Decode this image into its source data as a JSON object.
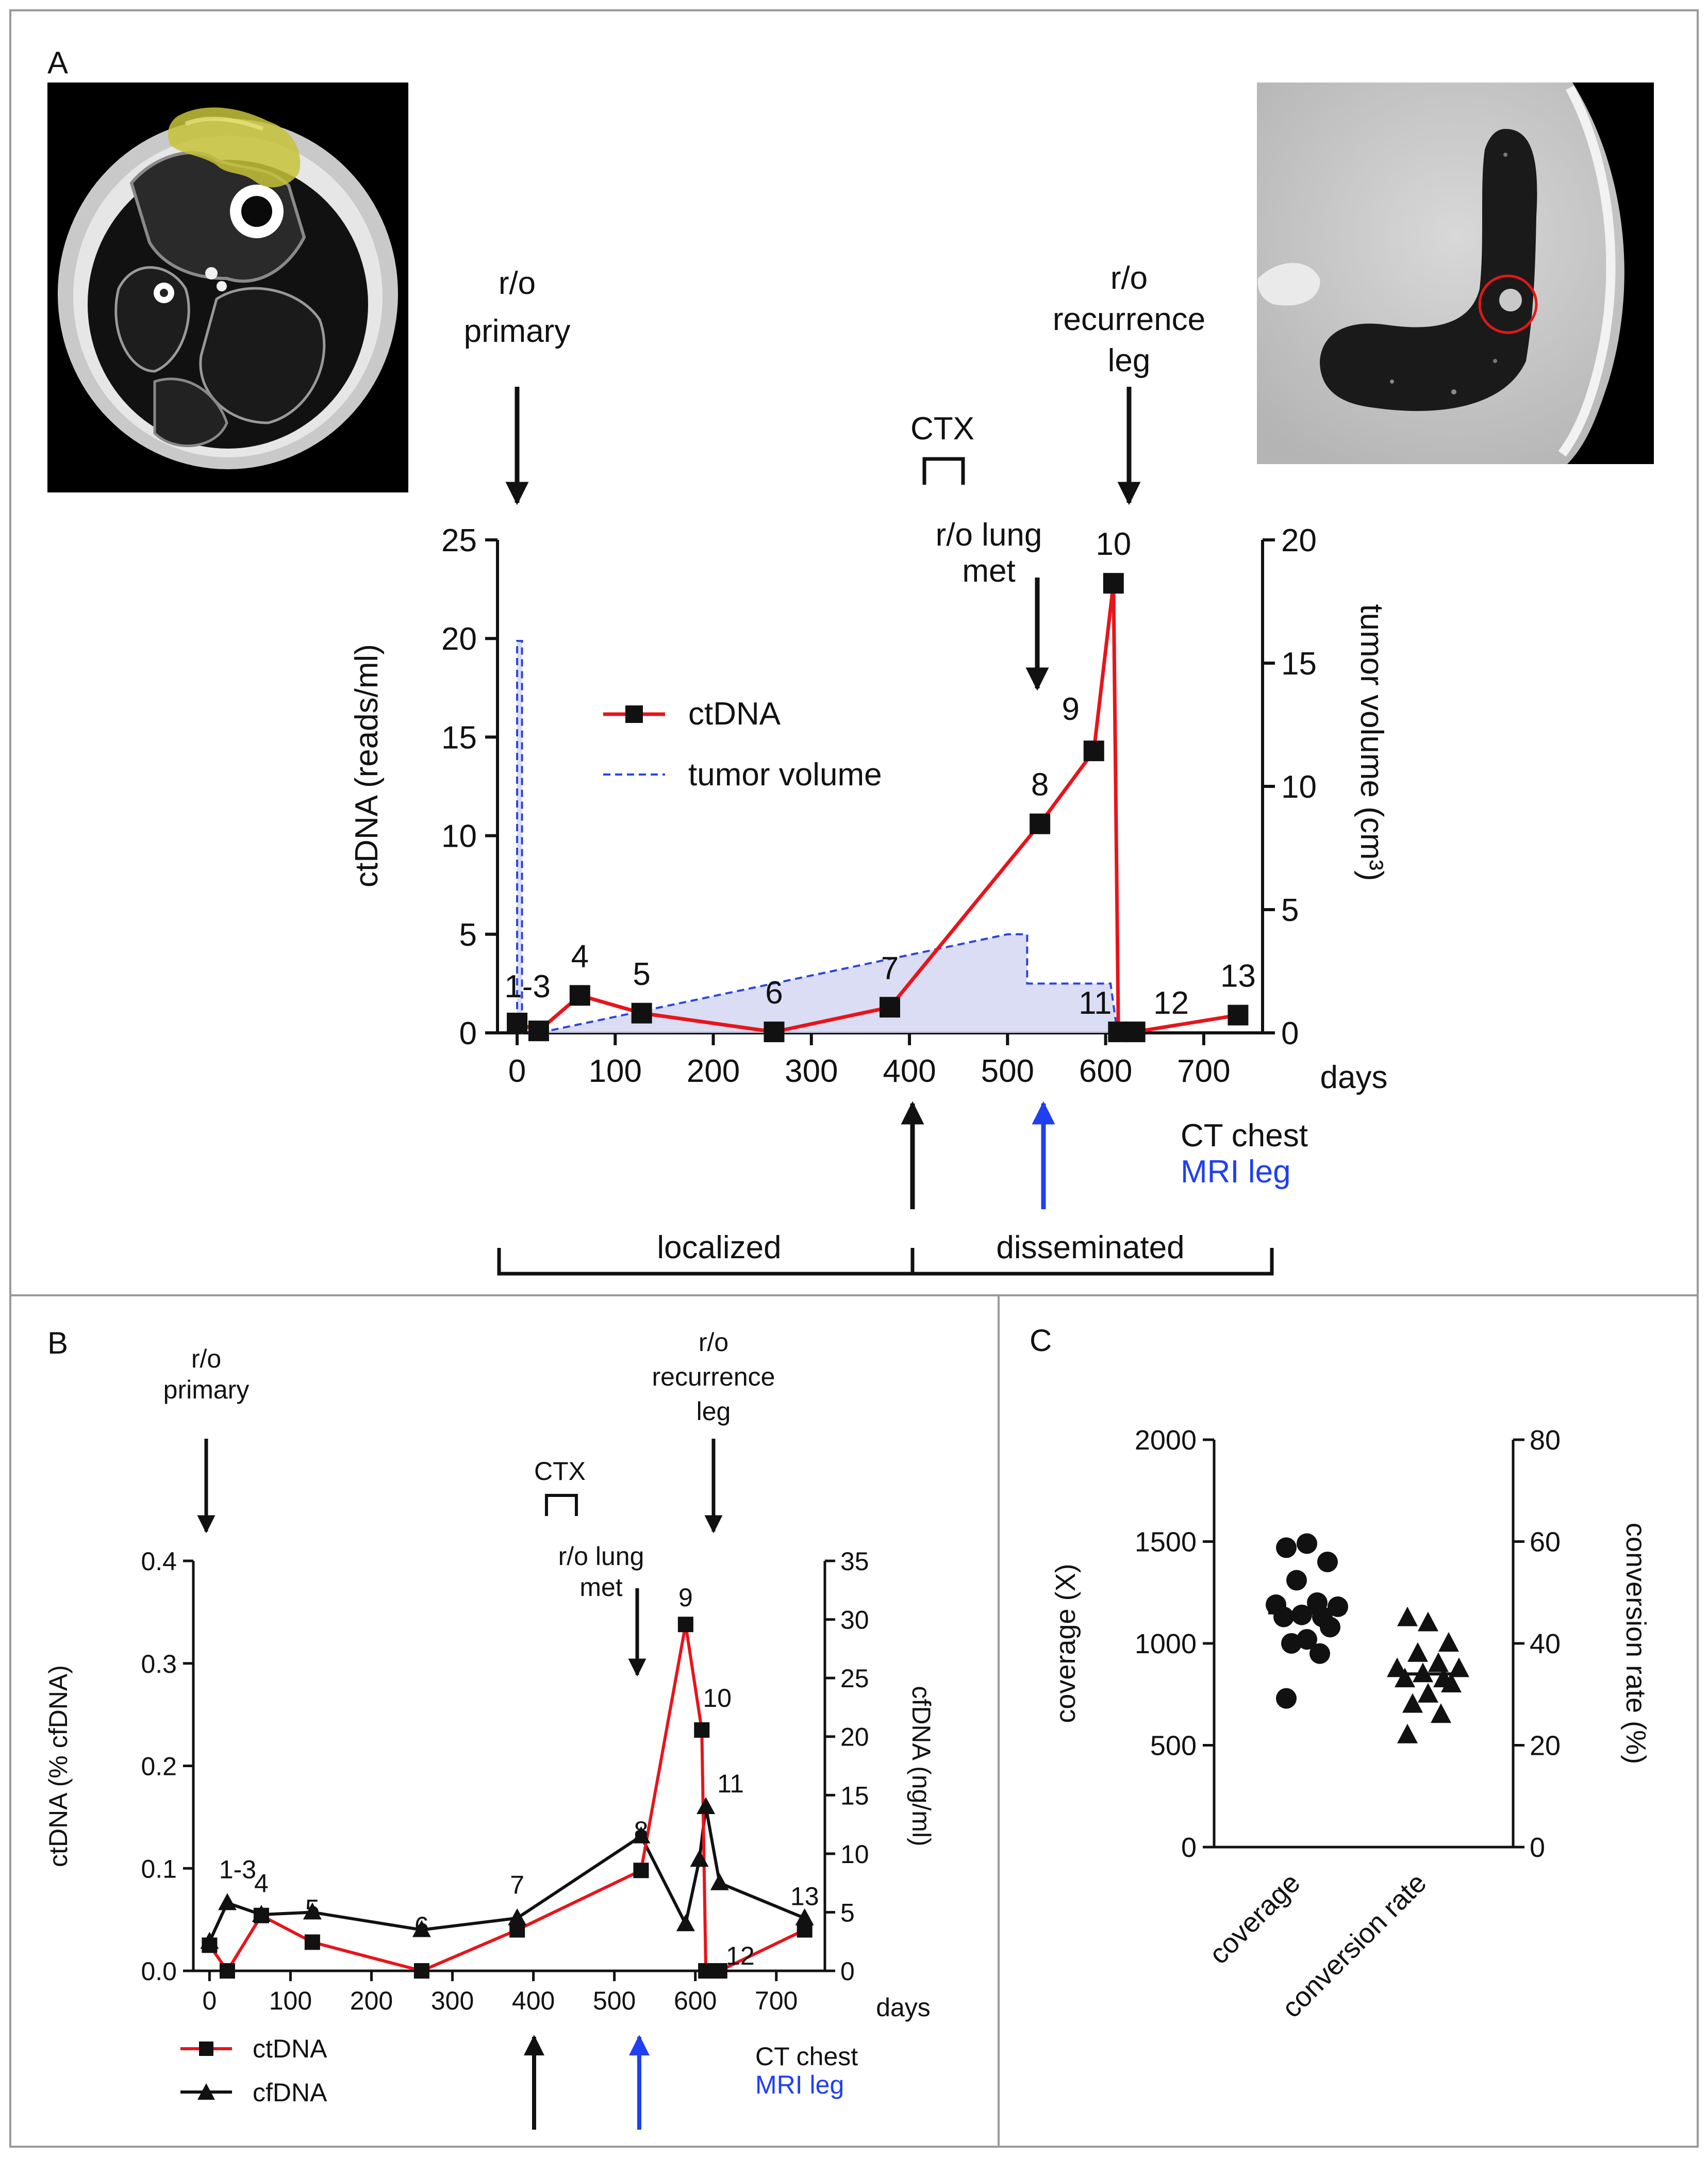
{
  "panel_labels": {
    "a": "A",
    "b": "B",
    "c": "C"
  },
  "colors": {
    "ctdna": "#e8141b",
    "black": "#111111",
    "tumor_line": "#2b45d9",
    "tumor_fill": "#d6d9f3",
    "blue_arrow": "#1f3ff2",
    "frame": "#9a9a9a"
  },
  "images": {
    "mri_caption": "MRI leg axial with highlighted tumor",
    "ct_caption": "CT chest with lung metastasis circled"
  },
  "panel_a": {
    "events": {
      "primary_1": "r/o",
      "primary_2": "primary",
      "ctx": "CTX",
      "lungmet_1": "r/o lung",
      "lungmet_2": "met",
      "recur_1": "r/o",
      "recur_2": "recurrence",
      "recur_3": "leg"
    },
    "bottom": {
      "ct_chest": "CT chest",
      "mri_leg": "MRI leg",
      "localized": "localized",
      "disseminated": "disseminated"
    }
  },
  "panel_b": {
    "events": {
      "primary_1": "r/o",
      "primary_2": "primary",
      "ctx": "CTX",
      "lungmet_1": "r/o lung",
      "lungmet_2": "met",
      "recur_1": "r/o",
      "recur_2": "recurrence",
      "recur_3": "leg"
    },
    "bottom": {
      "ct_chest": "CT chest",
      "mri_leg": "MRI leg"
    }
  },
  "chart_data": [
    {
      "panel": "A",
      "type": "line",
      "xlabel": "days",
      "ylabel": "ctDNA (reads/ml)",
      "y2label": "tumor volume (cm³)",
      "xlim": [
        -20,
        760
      ],
      "xticks": [
        0,
        100,
        200,
        300,
        400,
        500,
        600,
        700
      ],
      "ylim": [
        0,
        25
      ],
      "yticks": [
        0,
        5,
        10,
        15,
        20,
        25
      ],
      "y2lim": [
        0,
        20
      ],
      "y2ticks": [
        0,
        5,
        10,
        15,
        20
      ],
      "legend": [
        "ctDNA",
        "tumor volume"
      ],
      "series": [
        {
          "name": "ctDNA",
          "axis": "left",
          "marker": "square",
          "color": "#e8141b",
          "x": [
            0,
            22,
            64,
            127,
            262,
            380,
            533,
            588,
            608,
            613,
            630,
            735
          ],
          "y": [
            0.5,
            0.1,
            1.9,
            1.0,
            0.05,
            1.3,
            10.6,
            14.3,
            22.8,
            0.05,
            0.05,
            0.9
          ],
          "labels": [
            "1-3",
            "",
            "4",
            "5",
            "6",
            "7",
            "8",
            "9",
            "10",
            "11",
            "12",
            "13"
          ]
        },
        {
          "name": "tumor volume",
          "axis": "right",
          "style": "dashed",
          "fill": true,
          "color": "#2b45d9",
          "x": [
            0,
            0,
            5,
            5,
            22,
            500,
            520,
            520,
            605,
            612
          ],
          "y": [
            0,
            15.9,
            15.9,
            0,
            0,
            4.0,
            4.0,
            2.0,
            2.0,
            0
          ]
        }
      ]
    },
    {
      "panel": "B",
      "type": "line",
      "xlabel": "days",
      "ylabel": "ctDNA (% cfDNA)",
      "y2label": "cfDNA (ng/ml)",
      "xlim": [
        -20,
        760
      ],
      "xticks": [
        0,
        100,
        200,
        300,
        400,
        500,
        600,
        700
      ],
      "ylim": [
        0,
        0.4
      ],
      "yticks": [
        "0.0",
        "0.1",
        "0.2",
        "0.3",
        "0.4"
      ],
      "y2lim": [
        0,
        35
      ],
      "y2ticks": [
        0,
        5,
        10,
        15,
        20,
        25,
        30,
        35
      ],
      "legend": [
        "ctDNA",
        "cfDNA"
      ],
      "series": [
        {
          "name": "ctDNA",
          "axis": "left",
          "marker": "square",
          "color": "#e8141b",
          "x": [
            0,
            22,
            64,
            127,
            262,
            380,
            533,
            588,
            608,
            613,
            630,
            735
          ],
          "y": [
            0.025,
            0.0,
            0.054,
            0.028,
            0.0,
            0.04,
            0.098,
            0.338,
            0.235,
            0.0,
            0.0,
            0.04
          ],
          "labels": [
            "",
            "1-3",
            "4",
            "5",
            "6",
            "7",
            "8",
            "9",
            "10",
            "",
            "12",
            "13"
          ]
        },
        {
          "name": "cfDNA",
          "axis": "right",
          "marker": "triangle",
          "color": "#111111",
          "x": [
            0,
            22,
            64,
            127,
            262,
            380,
            533,
            588,
            605,
            613,
            630,
            735
          ],
          "y": [
            2.5,
            5.8,
            4.8,
            5.0,
            3.5,
            4.5,
            11.5,
            4.0,
            9.5,
            14.0,
            7.5,
            4.5
          ],
          "labels": [
            "",
            "",
            "",
            "",
            "",
            "",
            "",
            "",
            "",
            "11",
            "",
            ""
          ]
        }
      ]
    },
    {
      "panel": "C",
      "type": "scatter",
      "categories": [
        "coverage",
        "conversion rate"
      ],
      "ylabel": "coverage (X)",
      "y2label": "conversion rate (%)",
      "ylim": [
        0,
        2000
      ],
      "yticks": [
        0,
        500,
        1000,
        1500,
        2000
      ],
      "y2lim": [
        0,
        80
      ],
      "y2ticks": [
        0,
        20,
        40,
        60,
        80
      ],
      "series": [
        {
          "name": "coverage",
          "axis": "left",
          "marker": "circle",
          "median": 1150,
          "values": [
            1470,
            1490,
            1400,
            1310,
            1200,
            1190,
            1180,
            1140,
            1130,
            1130,
            1080,
            1020,
            1000,
            950,
            730
          ]
        },
        {
          "name": "conversion rate",
          "axis": "right",
          "marker": "triangle",
          "median": 34,
          "values": [
            45,
            44,
            40,
            38,
            36,
            35,
            35,
            34,
            33,
            33,
            32,
            30,
            28,
            26,
            22
          ]
        }
      ]
    }
  ]
}
